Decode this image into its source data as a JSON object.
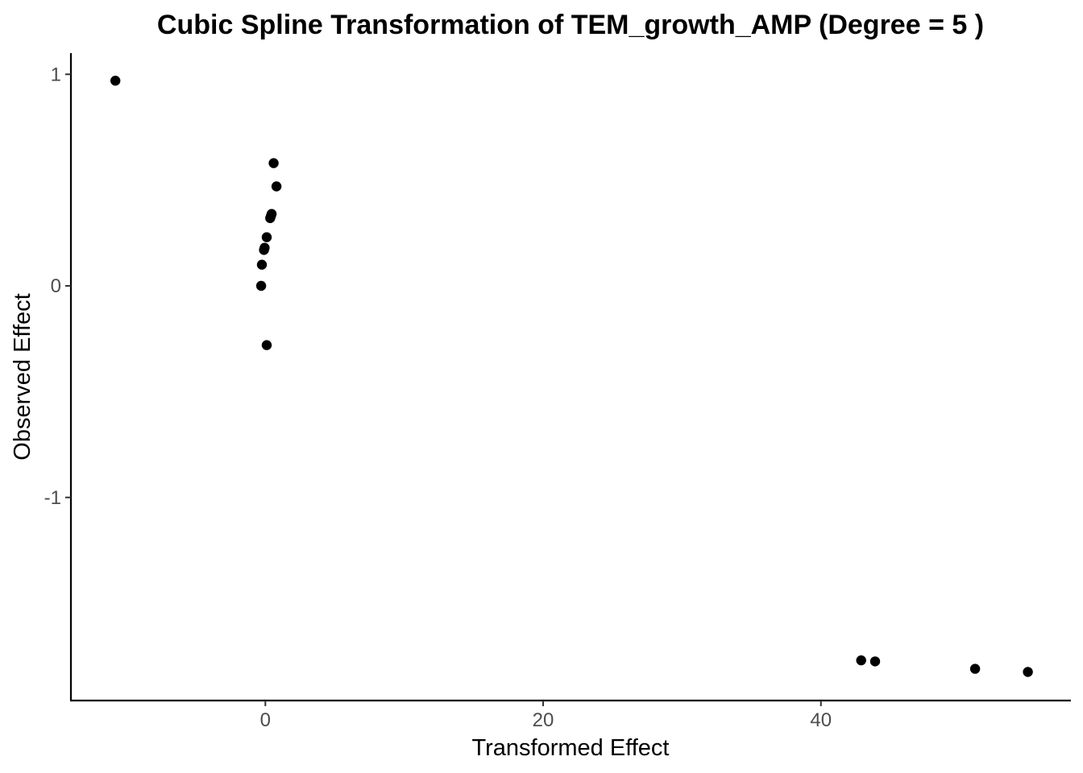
{
  "chart_data": {
    "type": "scatter",
    "title": "Cubic Spline Transformation of TEM_growth_AMP (Degree = 5 )",
    "xlabel": "Transformed Effect",
    "ylabel": "Observed Effect",
    "xlim": [
      -14,
      58
    ],
    "ylim": [
      -1.96,
      1.1
    ],
    "x_ticks": [
      0,
      20,
      40
    ],
    "x_tick_labels": [
      "0",
      "20",
      "40"
    ],
    "y_ticks": [
      -1,
      0,
      1
    ],
    "y_tick_labels": [
      "-1",
      "0",
      "1"
    ],
    "grid": false,
    "legend": "none",
    "point_color": "#000000",
    "points": [
      {
        "x": -10.8,
        "y": 0.97
      },
      {
        "x": 0.6,
        "y": 0.58
      },
      {
        "x": 0.8,
        "y": 0.47
      },
      {
        "x": 0.45,
        "y": 0.34
      },
      {
        "x": 0.4,
        "y": 0.33
      },
      {
        "x": 0.35,
        "y": 0.32
      },
      {
        "x": 0.1,
        "y": 0.23
      },
      {
        "x": -0.05,
        "y": 0.18
      },
      {
        "x": -0.1,
        "y": 0.17
      },
      {
        "x": -0.25,
        "y": 0.1
      },
      {
        "x": -0.3,
        "y": 0.0
      },
      {
        "x": 0.1,
        "y": -0.28
      },
      {
        "x": 42.9,
        "y": -1.77
      },
      {
        "x": 43.9,
        "y": -1.775
      },
      {
        "x": 51.1,
        "y": -1.81
      },
      {
        "x": 54.9,
        "y": -1.825
      }
    ]
  }
}
